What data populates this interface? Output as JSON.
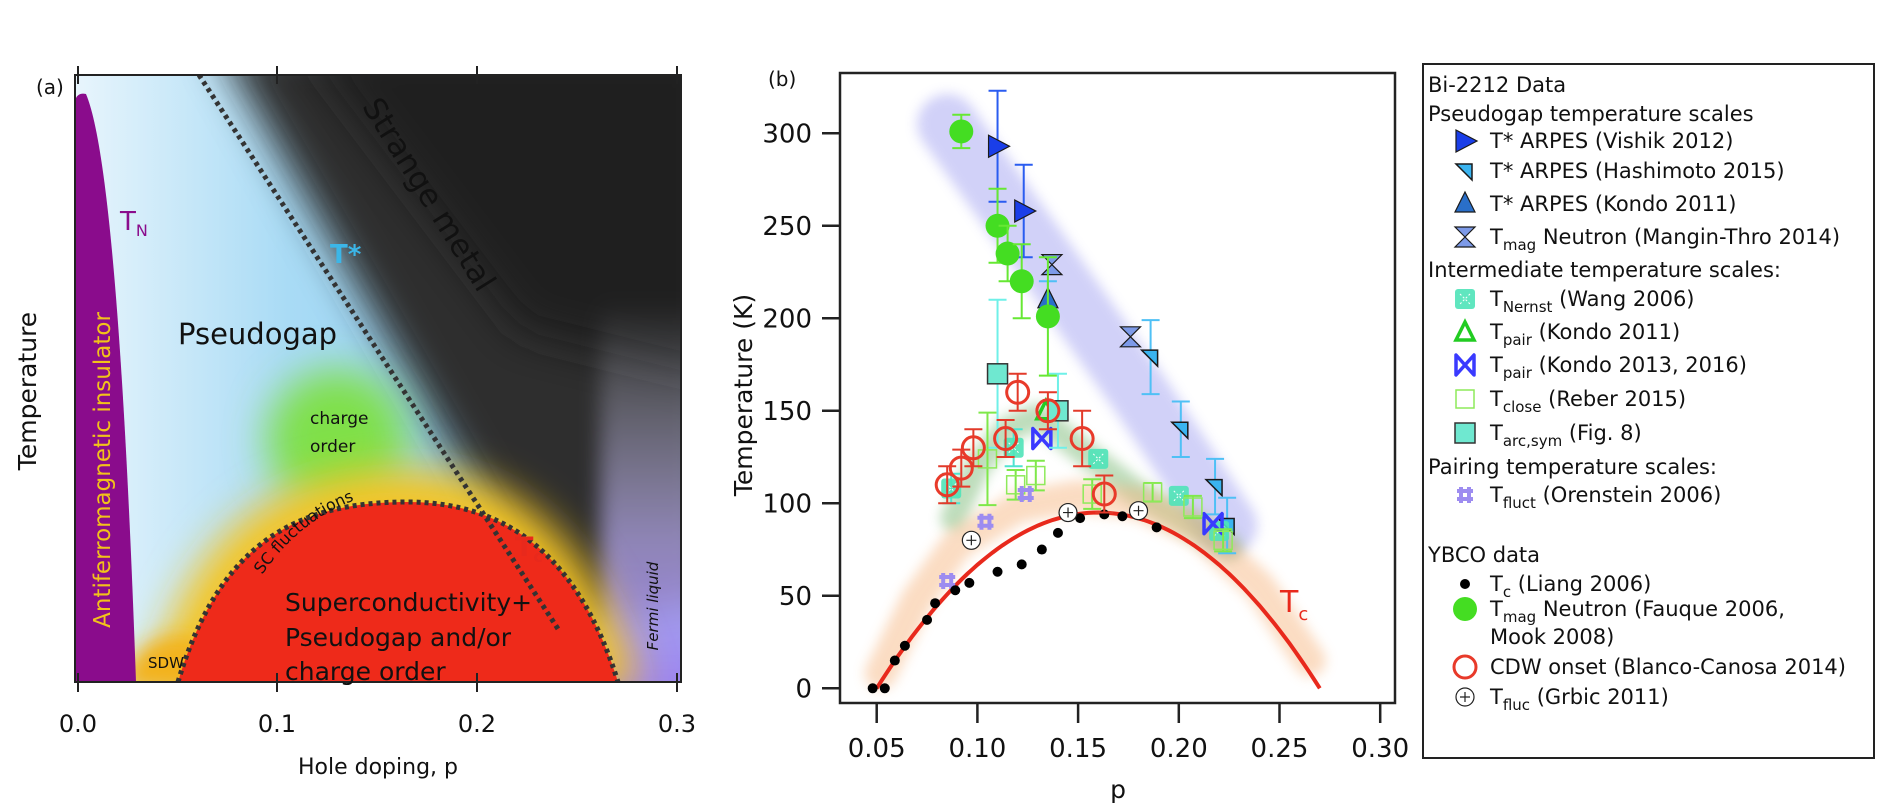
{
  "colors": {
    "tc_red": "#e8291c",
    "af_purple": "#8a0c8c",
    "tstar_cyan": "#3bb6e8",
    "pseudogap_blue": "#8fcff2",
    "strange_metal_gray": "#3a3a3a",
    "charge_order_green": "#7fe04a",
    "fermi_liquid_lavender": "#a58ef0",
    "af_label_yellow": "#f2c21a"
  },
  "chart_data": [
    {
      "panel_label": "(a)",
      "type": "area",
      "xlabel": "Hole doping, p",
      "ylabel": "Temperature",
      "xticks": [
        "0.0",
        "0.1",
        "0.2",
        "0.3"
      ],
      "xlim": [
        0.0,
        0.3
      ],
      "regions": {
        "af": "Antiferromagnetic insulator",
        "tn": "T",
        "tn_sub": "N",
        "tstar": "T*",
        "strange_metal": "Strange metal",
        "pseudogap": "Pseudogap",
        "charge_order_1": "charge",
        "charge_order_2": "order",
        "sc_fluct": "SC fluctuations",
        "tc": "T",
        "tc_sub": "c",
        "sc_1": "Superconductivity+",
        "sc_2": "Pseudogap and/or",
        "sc_3": "charge order",
        "sdw": "SDW",
        "fermi_liquid": "Fermi liquid"
      }
    },
    {
      "panel_label": "(b)",
      "type": "scatter",
      "xlabel": "p",
      "ylabel": "Temperature (K)",
      "xlim": [
        0.03,
        0.31
      ],
      "ylim": [
        -8,
        332
      ],
      "xticks": [
        0.05,
        0.1,
        0.15,
        0.2,
        0.25,
        0.3
      ],
      "xtick_labels": [
        "0.05",
        "0.10",
        "0.15",
        "0.20",
        "0.25",
        "0.30"
      ],
      "yticks": [
        0,
        50,
        100,
        150,
        200,
        250,
        300
      ],
      "ytick_labels": [
        "0",
        "50",
        "100",
        "150",
        "200",
        "250",
        "300"
      ],
      "tc_curve": {
        "label": "T",
        "label_sub": "c",
        "Tmax": 95,
        "p_opt": 0.16,
        "p_min": 0.05,
        "p_max": 0.27,
        "color": "#e8291c"
      },
      "bands": [
        {
          "color": "#9a9af0",
          "points": [
            [
              0.085,
              305
            ],
            [
              0.13,
              237
            ],
            [
              0.18,
              160
            ],
            [
              0.224,
              88
            ]
          ]
        },
        {
          "color": "#6fb46a",
          "points": [
            [
              0.088,
              92
            ],
            [
              0.1,
              120
            ],
            [
              0.115,
              140
            ],
            [
              0.13,
              147
            ],
            [
              0.15,
              130
            ],
            [
              0.18,
              105
            ],
            [
              0.21,
              86
            ],
            [
              0.225,
              76
            ]
          ]
        },
        {
          "color": "#f6b27a",
          "points": [
            [
              0.052,
              8
            ],
            [
              0.07,
              48
            ],
            [
              0.09,
              78
            ],
            [
              0.12,
              98
            ],
            [
              0.15,
              104
            ],
            [
              0.18,
              100
            ],
            [
              0.21,
              85
            ],
            [
              0.24,
              55
            ],
            [
              0.265,
              15
            ]
          ]
        }
      ],
      "legend": {
        "bi_header": "Bi-2212 Data",
        "ybco_header": "YBCO data",
        "groups": [
          "Pseudogap temperature scales",
          "Intermediate temperature scales:",
          "Pairing temperature scales:"
        ]
      },
      "series": [
        {
          "key": "vishik",
          "main": "T* ARPES (Vishik 2012)",
          "color": "#1a3ee8",
          "points": [
            [
              0.11,
              293,
              30
            ],
            [
              0.123,
              258,
              25
            ]
          ]
        },
        {
          "key": "hashimoto",
          "main": "T* ARPES (Hashimoto 2015)",
          "color": "#3ab4f0",
          "points": [
            [
              0.186,
              179,
              20
            ],
            [
              0.201,
              140,
              15
            ],
            [
              0.218,
              109,
              15
            ],
            [
              0.224,
              88,
              15
            ]
          ]
        },
        {
          "key": "kondo_tstar",
          "main": "T* ARPES (Kondo 2011)",
          "color": "#2a6fc9",
          "points": [
            [
              0.135,
              210,
              10
            ]
          ]
        },
        {
          "key": "mangin",
          "main": "T",
          "sub": "mag",
          "rest": " Neutron (Mangin-Thro 2014)",
          "color": "#7d9ae8",
          "points": [
            [
              0.137,
              229,
              0
            ],
            [
              0.176,
              190,
              0
            ]
          ]
        },
        {
          "key": "nernst",
          "main": "T",
          "sub": "Nernst",
          "rest": " (Wang 2006)",
          "color": "#4fe3b8",
          "points": [
            [
              0.087,
              108,
              8
            ],
            [
              0.118,
              130,
              10
            ],
            [
              0.16,
              124,
              0
            ],
            [
              0.2,
              104,
              0
            ],
            [
              0.22,
              85,
              0
            ]
          ]
        },
        {
          "key": "tpair_kondo2011",
          "main": "T",
          "sub": "pair",
          "rest": " (Kondo 2011)",
          "color": "#22cc22",
          "points": [
            [
              0.134,
              150,
              0
            ]
          ]
        },
        {
          "key": "tpair_kondo2013",
          "main": "T",
          "sub": "pair",
          "rest": " (Kondo 2013, 2016)",
          "color": "#3a3aff",
          "points": [
            [
              0.132,
              135,
              0
            ],
            [
              0.217,
              89,
              0
            ]
          ]
        },
        {
          "key": "tclose",
          "main": "T",
          "sub": "close",
          "rest": " (Reber 2015)",
          "color": "#8eea5a",
          "points": [
            [
              0.105,
              124,
              25
            ],
            [
              0.119,
              110,
              8
            ],
            [
              0.129,
              115,
              8
            ],
            [
              0.157,
              105,
              8
            ],
            [
              0.187,
              106,
              5
            ],
            [
              0.207,
              98,
              6
            ],
            [
              0.222,
              80,
              6
            ]
          ]
        },
        {
          "key": "tarc",
          "main": "T",
          "sub": "arc,sym",
          "rest": " (Fig. 8)",
          "color": "#6fe8d0",
          "points": [
            [
              0.11,
              170,
              40
            ],
            [
              0.14,
              150,
              20
            ]
          ]
        },
        {
          "key": "tfluct",
          "main": "T",
          "sub": "fluct",
          "rest": " (Orenstein 2006)",
          "color": "#9d8cf0",
          "points": [
            [
              0.085,
              58,
              0
            ],
            [
              0.104,
              90,
              0
            ],
            [
              0.124,
              105,
              0
            ]
          ]
        },
        {
          "key": "liang",
          "main": "T",
          "sub": "c",
          "rest": " (Liang 2006)",
          "color": "#000000",
          "points": [
            [
              0.048,
              0,
              0
            ],
            [
              0.054,
              0,
              0
            ],
            [
              0.059,
              15,
              0
            ],
            [
              0.064,
              23,
              0
            ],
            [
              0.075,
              37,
              0
            ],
            [
              0.079,
              46,
              0
            ],
            [
              0.089,
              53,
              0
            ],
            [
              0.096,
              57,
              0
            ],
            [
              0.11,
              63,
              0
            ],
            [
              0.122,
              67,
              0
            ],
            [
              0.132,
              75,
              0
            ],
            [
              0.14,
              84,
              0
            ],
            [
              0.151,
              92,
              0
            ],
            [
              0.163,
              94,
              0
            ],
            [
              0.172,
              93,
              0
            ],
            [
              0.189,
              87,
              0
            ]
          ]
        },
        {
          "key": "tmag_ybco",
          "main": "T",
          "sub": "mag",
          "rest": " Neutron  (Fauque 2006,",
          "rest2": "Mook 2008)",
          "color": "#44dd22",
          "points": [
            [
              0.092,
              301,
              9
            ],
            [
              0.11,
              250,
              20
            ],
            [
              0.115,
              235,
              15
            ],
            [
              0.122,
              220,
              20
            ],
            [
              0.135,
              201,
              32
            ]
          ]
        },
        {
          "key": "cdw",
          "main": "CDW onset (Blanco-Canosa 2014)",
          "color": "#e83a2a",
          "points": [
            [
              0.085,
              110,
              10
            ],
            [
              0.092,
              119,
              10
            ],
            [
              0.098,
              130,
              10
            ],
            [
              0.114,
              135,
              10
            ],
            [
              0.12,
              160,
              10
            ],
            [
              0.135,
              150,
              10
            ],
            [
              0.152,
              135,
              15
            ],
            [
              0.163,
              105,
              10
            ]
          ]
        },
        {
          "key": "grbic",
          "main": "T",
          "sub": "fluc",
          "rest": " (Grbic 2011)",
          "color": "#000000",
          "points": [
            [
              0.097,
              80,
              0
            ],
            [
              0.145,
              95,
              0
            ],
            [
              0.18,
              96,
              0
            ]
          ]
        }
      ]
    }
  ]
}
